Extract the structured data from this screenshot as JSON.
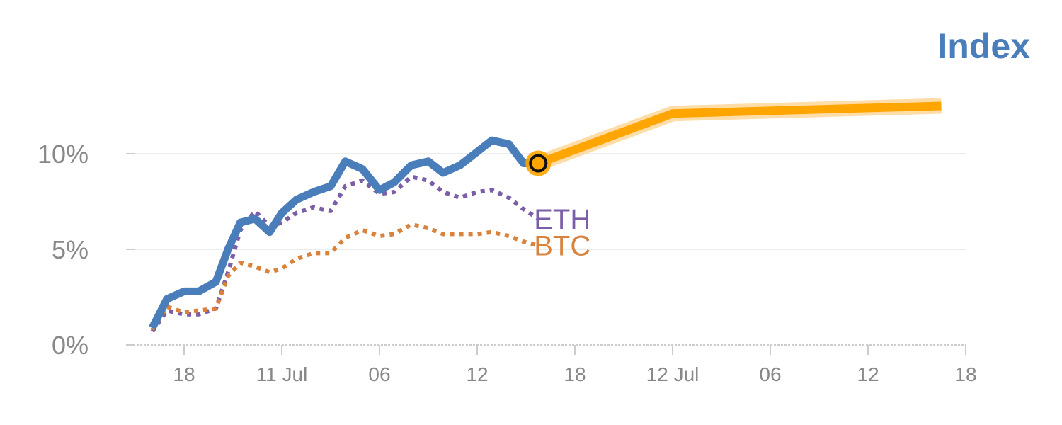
{
  "chart_data": {
    "type": "line",
    "title": "Index",
    "y_ticks": [
      "0%",
      "5%",
      "10%"
    ],
    "x_ticks": [
      "18",
      "11 Jul",
      "06",
      "12",
      "18",
      "12 Jul",
      "06",
      "12",
      "18"
    ],
    "ylim": [
      0,
      13
    ],
    "xlim": [
      -1.1,
      15.7
    ],
    "grid": true,
    "x_tick_positions": [
      0,
      2,
      4,
      6,
      8,
      10,
      12,
      14,
      16
    ],
    "series": [
      {
        "name": "",
        "style": "solid",
        "color": "#4a7ebb",
        "x": [
          -0.65,
          -0.35,
          0.0,
          0.3,
          0.65,
          0.9,
          1.15,
          1.45,
          1.75,
          2.0,
          2.3,
          2.65,
          3.0,
          3.3,
          3.65,
          4.0,
          4.3,
          4.65,
          5.0,
          5.3,
          5.65,
          6.0,
          6.3,
          6.65,
          6.95,
          7.25
        ],
        "values": [
          0.9,
          2.4,
          2.8,
          2.8,
          3.3,
          5.0,
          6.4,
          6.6,
          5.9,
          6.9,
          7.6,
          8.0,
          8.3,
          9.6,
          9.2,
          8.1,
          8.5,
          9.4,
          9.6,
          9.0,
          9.4,
          10.1,
          10.7,
          10.5,
          9.5,
          9.5
        ]
      },
      {
        "name": "ETH",
        "style": "dotted",
        "color": "#7b5ea7",
        "x": [
          -0.65,
          -0.35,
          0.0,
          0.3,
          0.65,
          0.9,
          1.15,
          1.45,
          1.75,
          2.0,
          2.3,
          2.65,
          3.0,
          3.3,
          3.65,
          4.0,
          4.3,
          4.65,
          5.0,
          5.3,
          5.65,
          6.0,
          6.3,
          6.65,
          6.95,
          7.25
        ],
        "values": [
          0.7,
          1.8,
          1.6,
          1.6,
          1.9,
          3.8,
          6.0,
          7.0,
          6.2,
          6.4,
          6.9,
          7.2,
          7.0,
          8.3,
          8.6,
          7.9,
          8.0,
          8.8,
          8.6,
          8.0,
          7.7,
          8.0,
          8.1,
          7.7,
          7.1,
          6.6
        ]
      },
      {
        "name": "BTC",
        "style": "dotted",
        "color": "#d9823b",
        "x": [
          -0.65,
          -0.35,
          0.0,
          0.3,
          0.65,
          0.9,
          1.15,
          1.45,
          1.75,
          2.0,
          2.3,
          2.65,
          3.0,
          3.3,
          3.65,
          4.0,
          4.3,
          4.65,
          5.0,
          5.3,
          5.65,
          6.0,
          6.3,
          6.65,
          6.95,
          7.25
        ],
        "values": [
          0.8,
          2.0,
          1.7,
          1.8,
          1.9,
          3.6,
          4.3,
          4.1,
          3.8,
          4.0,
          4.5,
          4.8,
          4.8,
          5.6,
          6.0,
          5.7,
          5.8,
          6.3,
          6.1,
          5.8,
          5.8,
          5.8,
          5.9,
          5.7,
          5.4,
          5.2
        ]
      },
      {
        "name": "",
        "style": "projection",
        "color": "#ffa500",
        "x": [
          7.25,
          10.0,
          15.5
        ],
        "values": [
          9.5,
          12.1,
          12.5
        ]
      }
    ],
    "marker": {
      "x": 7.25,
      "value": 9.5,
      "color": "#ffa500"
    }
  },
  "colors": {
    "title": "#4a7ebb",
    "axis": "#cccccc",
    "grid": "#e6e6e6",
    "tick_text": "#888888"
  }
}
